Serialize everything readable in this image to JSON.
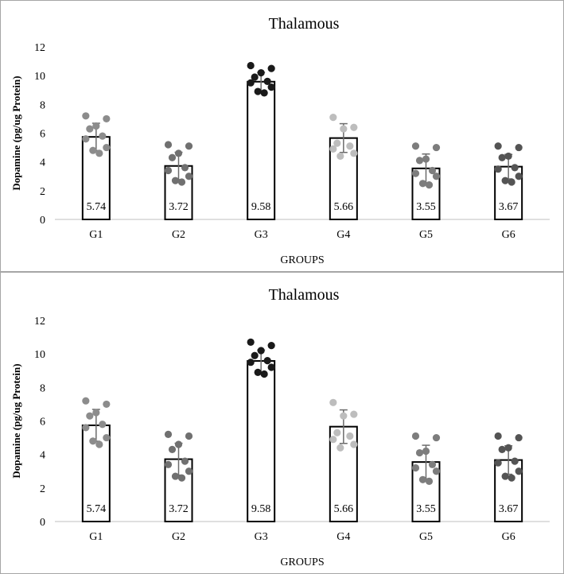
{
  "chart_data": [
    {
      "type": "bar",
      "title": "Thalamous",
      "xlabel": "GROUPS",
      "ylabel": "Dopamine (pg/ug Protein)",
      "ylim": [
        0,
        12
      ],
      "yticks": [
        "0",
        "2",
        "4",
        "6",
        "8",
        "10",
        "12"
      ],
      "grid": false,
      "categories": [
        "G1",
        "G2",
        "G3",
        "G4",
        "G5",
        "G6"
      ],
      "values": [
        5.74,
        3.72,
        9.58,
        5.66,
        3.55,
        3.67
      ],
      "value_labels": [
        "5.74",
        "3.72",
        "9.58",
        "5.66",
        "3.55",
        "3.67"
      ],
      "error": [
        0.95,
        0.95,
        0.65,
        1.0,
        1.0,
        0.85
      ],
      "point_colors": [
        "#8c8c8c",
        "#707070",
        "#1a1a1a",
        "#bdbdbd",
        "#7d7d7d",
        "#545454"
      ],
      "points": [
        [
          7.2,
          7.0,
          6.5,
          6.3,
          5.8,
          5.6,
          5.0,
          4.8,
          4.6
        ],
        [
          5.2,
          5.1,
          4.6,
          4.3,
          3.6,
          3.4,
          3.0,
          2.7,
          2.6
        ],
        [
          10.7,
          10.5,
          10.2,
          9.9,
          9.6,
          9.5,
          9.2,
          8.9,
          8.8
        ],
        [
          7.1,
          6.4,
          6.3,
          5.3,
          5.1,
          4.9,
          4.6,
          4.4
        ],
        [
          5.1,
          5.0,
          4.2,
          4.1,
          3.4,
          3.2,
          3.0,
          2.5,
          2.4
        ],
        [
          5.1,
          5.0,
          4.4,
          4.3,
          3.6,
          3.5,
          3.0,
          2.7,
          2.6
        ]
      ]
    },
    {
      "type": "bar",
      "title": "Thalamous",
      "xlabel": "GROUPS",
      "ylabel": "Dopamine (pg/ug Protein)",
      "ylim": [
        0,
        12
      ],
      "yticks": [
        "0",
        "2",
        "4",
        "6",
        "8",
        "10",
        "12"
      ],
      "grid": false,
      "categories": [
        "G1",
        "G2",
        "G3",
        "G4",
        "G5",
        "G6"
      ],
      "values": [
        5.74,
        3.72,
        9.58,
        5.66,
        3.55,
        3.67
      ],
      "value_labels": [
        "5.74",
        "3.72",
        "9.58",
        "5.66",
        "3.55",
        "3.67"
      ],
      "error": [
        0.95,
        0.95,
        0.65,
        1.0,
        1.0,
        0.85
      ],
      "point_colors": [
        "#8c8c8c",
        "#707070",
        "#1a1a1a",
        "#bdbdbd",
        "#7d7d7d",
        "#545454"
      ],
      "points": [
        [
          7.2,
          7.0,
          6.5,
          6.3,
          5.8,
          5.6,
          5.0,
          4.8,
          4.6
        ],
        [
          5.2,
          5.1,
          4.6,
          4.3,
          3.6,
          3.4,
          3.0,
          2.7,
          2.6
        ],
        [
          10.7,
          10.5,
          10.2,
          9.9,
          9.6,
          9.5,
          9.2,
          8.9,
          8.8
        ],
        [
          7.1,
          6.4,
          6.3,
          5.3,
          5.1,
          4.9,
          4.6,
          4.4
        ],
        [
          5.1,
          5.0,
          4.2,
          4.1,
          3.4,
          3.2,
          3.0,
          2.5,
          2.4
        ],
        [
          5.1,
          5.0,
          4.4,
          4.3,
          3.6,
          3.5,
          3.0,
          2.7,
          2.6
        ]
      ]
    }
  ]
}
